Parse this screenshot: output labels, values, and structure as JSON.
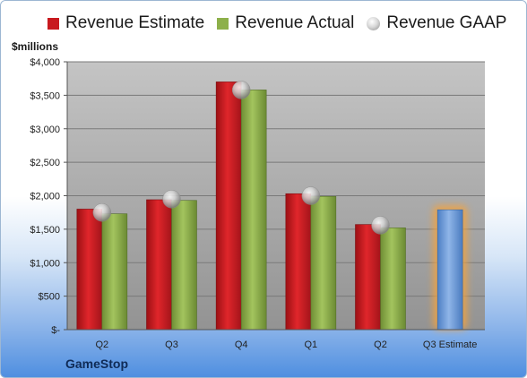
{
  "chart_data": {
    "type": "bar",
    "unit_label": "$millions",
    "categories": [
      "Q2",
      "Q3",
      "Q4",
      "Q1",
      "Q2",
      "Q3 Estimate"
    ],
    "series": [
      {
        "name": "Revenue Estimate",
        "color": "#c8191e",
        "values": [
          1800,
          1940,
          3700,
          2030,
          1570,
          null
        ]
      },
      {
        "name": "Revenue Actual",
        "color": "#8db04a",
        "values": [
          1730,
          1930,
          3580,
          1990,
          1520,
          null
        ]
      },
      {
        "name": "Revenue GAAP",
        "color": "#bfbfbf",
        "values": [
          1750,
          1950,
          3580,
          2000,
          1560,
          null
        ]
      }
    ],
    "forecast": {
      "category": "Q3 Estimate",
      "value": 1790,
      "color": "#6f9bd8",
      "glow": "#f2a341"
    },
    "ylim": [
      0,
      4000
    ],
    "yticks": [
      0,
      500,
      1000,
      1500,
      2000,
      2500,
      3000,
      3500,
      4000
    ],
    "ytick_labels": [
      "$-",
      "$500",
      "$1,000",
      "$1,500",
      "$2,000",
      "$2,500",
      "$3,000",
      "$3,500",
      "$4,000"
    ],
    "grid": true,
    "legend_position": "top"
  },
  "footer": {
    "company": "GameStop"
  }
}
